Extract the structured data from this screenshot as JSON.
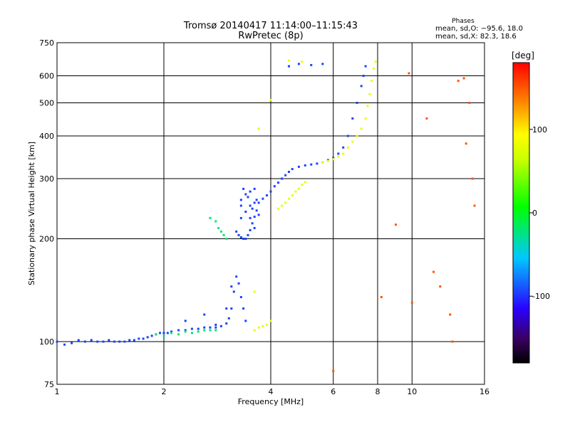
{
  "chart_data": {
    "type": "scatter",
    "title": "Tromsø 20140417 11:14:00–11:15:43",
    "subtitle": "RwPretec (8p)",
    "xlabel": "Frequency [MHz]",
    "ylabel": "Stationary phase Virtual Height [km]",
    "xscale": "log",
    "yscale": "log",
    "xlim": [
      1,
      16
    ],
    "ylim": [
      75,
      750
    ],
    "xticks": [
      1,
      2,
      4,
      6,
      8,
      10,
      16
    ],
    "yticks": [
      75,
      100,
      200,
      300,
      400,
      500,
      600,
      750
    ],
    "grid": true,
    "phase_stats": {
      "heading": "Phases",
      "line_o": "mean, sd,O: −95.6, 18.0",
      "line_x": "mean, sd,X:  82.3, 18.6"
    },
    "colorbar": {
      "label": "[deg]",
      "range": [
        -180,
        180
      ],
      "ticks": [
        100,
        0,
        -100
      ],
      "colormap": "rainbow"
    },
    "series": [
      {
        "mode": "O",
        "phase_deg": -95,
        "points": [
          [
            1.0,
            100
          ],
          [
            1.05,
            98
          ],
          [
            1.1,
            99
          ],
          [
            1.15,
            101
          ],
          [
            1.2,
            100
          ],
          [
            1.25,
            101
          ],
          [
            1.3,
            100
          ],
          [
            1.35,
            100
          ],
          [
            1.4,
            101
          ],
          [
            1.45,
            100
          ],
          [
            1.5,
            100
          ],
          [
            1.55,
            100
          ],
          [
            1.6,
            101
          ],
          [
            1.65,
            101
          ],
          [
            1.7,
            102
          ],
          [
            1.75,
            102
          ],
          [
            1.8,
            103
          ],
          [
            1.85,
            104
          ],
          [
            1.9,
            105
          ],
          [
            1.95,
            106
          ],
          [
            2.0,
            106
          ],
          [
            2.05,
            106
          ],
          [
            2.1,
            107
          ],
          [
            2.2,
            108
          ],
          [
            2.3,
            108
          ],
          [
            2.4,
            109
          ],
          [
            2.5,
            109
          ],
          [
            2.6,
            110
          ],
          [
            2.7,
            110
          ],
          [
            2.8,
            110
          ],
          [
            2.9,
            111
          ],
          [
            3.0,
            113
          ],
          [
            3.05,
            117
          ],
          [
            3.1,
            125
          ],
          [
            3.15,
            140
          ],
          [
            3.2,
            155
          ],
          [
            3.25,
            148
          ],
          [
            3.3,
            135
          ],
          [
            3.35,
            125
          ],
          [
            3.4,
            115
          ],
          [
            3.2,
            210
          ],
          [
            3.25,
            205
          ],
          [
            3.3,
            202
          ],
          [
            3.35,
            200
          ],
          [
            3.4,
            200
          ],
          [
            3.45,
            205
          ],
          [
            3.5,
            212
          ],
          [
            3.55,
            222
          ],
          [
            3.6,
            232
          ],
          [
            3.65,
            242
          ],
          [
            3.7,
            255
          ],
          [
            3.8,
            262
          ],
          [
            3.9,
            268
          ],
          [
            4.0,
            275
          ],
          [
            4.1,
            285
          ],
          [
            4.2,
            292
          ],
          [
            4.3,
            300
          ],
          [
            4.4,
            307
          ],
          [
            4.5,
            314
          ],
          [
            4.6,
            320
          ],
          [
            4.8,
            325
          ],
          [
            5.0,
            328
          ],
          [
            5.2,
            330
          ],
          [
            5.4,
            332
          ],
          [
            5.6,
            335
          ],
          [
            5.8,
            340
          ],
          [
            6.0,
            345
          ],
          [
            6.2,
            355
          ],
          [
            6.4,
            370
          ],
          [
            6.6,
            400
          ],
          [
            6.8,
            450
          ],
          [
            7.0,
            500
          ],
          [
            7.2,
            560
          ],
          [
            7.3,
            600
          ],
          [
            7.4,
            640
          ],
          [
            3.3,
            230
          ],
          [
            3.4,
            240
          ],
          [
            3.5,
            250
          ],
          [
            3.6,
            255
          ],
          [
            3.3,
            260
          ],
          [
            3.4,
            270
          ],
          [
            3.5,
            275
          ],
          [
            3.6,
            280
          ],
          [
            3.3,
            250
          ],
          [
            3.45,
            265
          ],
          [
            3.55,
            245
          ],
          [
            3.65,
            260
          ],
          [
            3.35,
            280
          ],
          [
            3.5,
            230
          ],
          [
            3.6,
            215
          ],
          [
            3.7,
            235
          ],
          [
            4.5,
            640
          ],
          [
            4.8,
            650
          ],
          [
            5.2,
            645
          ],
          [
            5.6,
            650
          ],
          [
            2.3,
            115
          ],
          [
            2.6,
            120
          ],
          [
            2.8,
            112
          ],
          [
            3.0,
            125
          ],
          [
            3.1,
            145
          ]
        ]
      },
      {
        "mode": "X",
        "phase_deg": 82,
        "points": [
          [
            3.6,
            108
          ],
          [
            3.7,
            110
          ],
          [
            3.8,
            111
          ],
          [
            3.9,
            112
          ],
          [
            4.0,
            115
          ],
          [
            4.2,
            245
          ],
          [
            4.3,
            250
          ],
          [
            4.4,
            255
          ],
          [
            4.5,
            262
          ],
          [
            4.6,
            268
          ],
          [
            4.7,
            275
          ],
          [
            4.8,
            280
          ],
          [
            4.9,
            288
          ],
          [
            5.0,
            293
          ],
          [
            5.6,
            335
          ],
          [
            5.8,
            338
          ],
          [
            6.0,
            342
          ],
          [
            6.2,
            348
          ],
          [
            6.4,
            355
          ],
          [
            6.6,
            370
          ],
          [
            6.8,
            385
          ],
          [
            7.0,
            400
          ],
          [
            7.2,
            420
          ],
          [
            7.4,
            450
          ],
          [
            7.5,
            490
          ],
          [
            7.6,
            530
          ],
          [
            7.7,
            580
          ],
          [
            7.8,
            630
          ],
          [
            4.5,
            665
          ],
          [
            4.9,
            660
          ],
          [
            7.9,
            660
          ],
          [
            3.7,
            420
          ],
          [
            4.0,
            510
          ],
          [
            3.6,
            140
          ]
        ]
      },
      {
        "mode": "low",
        "phase_deg": -20,
        "points": [
          [
            1.9,
            105
          ],
          [
            2.0,
            104
          ],
          [
            2.1,
            106
          ],
          [
            2.2,
            105
          ],
          [
            2.3,
            107
          ],
          [
            2.4,
            106
          ],
          [
            2.5,
            107
          ],
          [
            2.6,
            108
          ],
          [
            2.7,
            108
          ],
          [
            2.8,
            108
          ],
          [
            2.8,
            225
          ],
          [
            2.85,
            215
          ],
          [
            2.9,
            210
          ],
          [
            2.95,
            205
          ],
          [
            3.0,
            200
          ],
          [
            2.7,
            230
          ]
        ]
      },
      {
        "mode": "scatter",
        "phase_deg": 150,
        "points": [
          [
            8.2,
            135
          ],
          [
            9.0,
            220
          ],
          [
            10.0,
            130
          ],
          [
            11.5,
            160
          ],
          [
            12.0,
            145
          ],
          [
            12.8,
            120
          ],
          [
            13.5,
            580
          ],
          [
            14.0,
            590
          ],
          [
            14.2,
            380
          ],
          [
            14.5,
            500
          ],
          [
            15.0,
            250
          ],
          [
            14.8,
            300
          ],
          [
            13.0,
            100
          ],
          [
            6.0,
            82
          ],
          [
            9.8,
            610
          ],
          [
            11.0,
            450
          ]
        ]
      }
    ]
  }
}
